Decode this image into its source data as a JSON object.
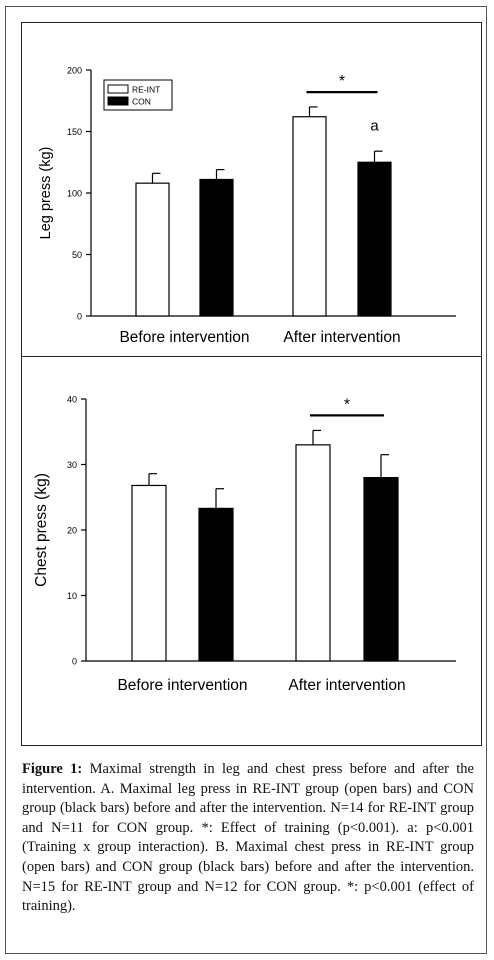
{
  "chart_data": [
    {
      "type": "bar",
      "panel": "A",
      "ylabel": "Leg press (kg)",
      "ylim": [
        0,
        200
      ],
      "yticks": [
        0,
        50,
        100,
        150,
        200
      ],
      "categories": [
        "Before intervention",
        "After intervention"
      ],
      "series": [
        {
          "name": "RE-INT",
          "fill": "#ffffff",
          "values": [
            108,
            162
          ],
          "errors": [
            8,
            8
          ]
        },
        {
          "name": "CON",
          "fill": "#000000",
          "values": [
            111,
            125
          ],
          "errors": [
            8,
            9
          ]
        }
      ],
      "legend": "top-left",
      "annotations": [
        {
          "text": "*",
          "category": 1,
          "type": "bracket",
          "y": 182
        },
        {
          "text": "a",
          "category": 1,
          "series": 1,
          "type": "label",
          "y": 151
        }
      ]
    },
    {
      "type": "bar",
      "panel": "B",
      "ylabel": "Chest press (kg)",
      "ylim": [
        0,
        40
      ],
      "yticks": [
        0,
        10,
        20,
        30,
        40
      ],
      "categories": [
        "Before intervention",
        "After intervention"
      ],
      "series": [
        {
          "name": "RE-INT",
          "fill": "#ffffff",
          "values": [
            26.8,
            33
          ],
          "errors": [
            1.8,
            2.2
          ]
        },
        {
          "name": "CON",
          "fill": "#000000",
          "values": [
            23.3,
            28
          ],
          "errors": [
            3.0,
            3.5
          ]
        }
      ],
      "annotations": [
        {
          "text": "*",
          "category": 1,
          "type": "bracket",
          "y": 37.5
        }
      ]
    }
  ],
  "caption": {
    "label": "Figure 1:",
    "text": " Maximal strength in leg and chest press before and after the intervention. A. Maximal leg press in RE-INT group (open bars) and CON group (black bars) before and after the intervention. N=14 for RE-INT group and N=11 for CON group. *: Effect of training (p<0.001). a: p<0.001 (Training x group interaction). B. Maximal chest press in RE-INT group (open bars) and CON group (black bars) before and after the intervention. N=15 for RE-INT group and N=12 for CON group. *: p<0.001 (effect of training)."
  }
}
